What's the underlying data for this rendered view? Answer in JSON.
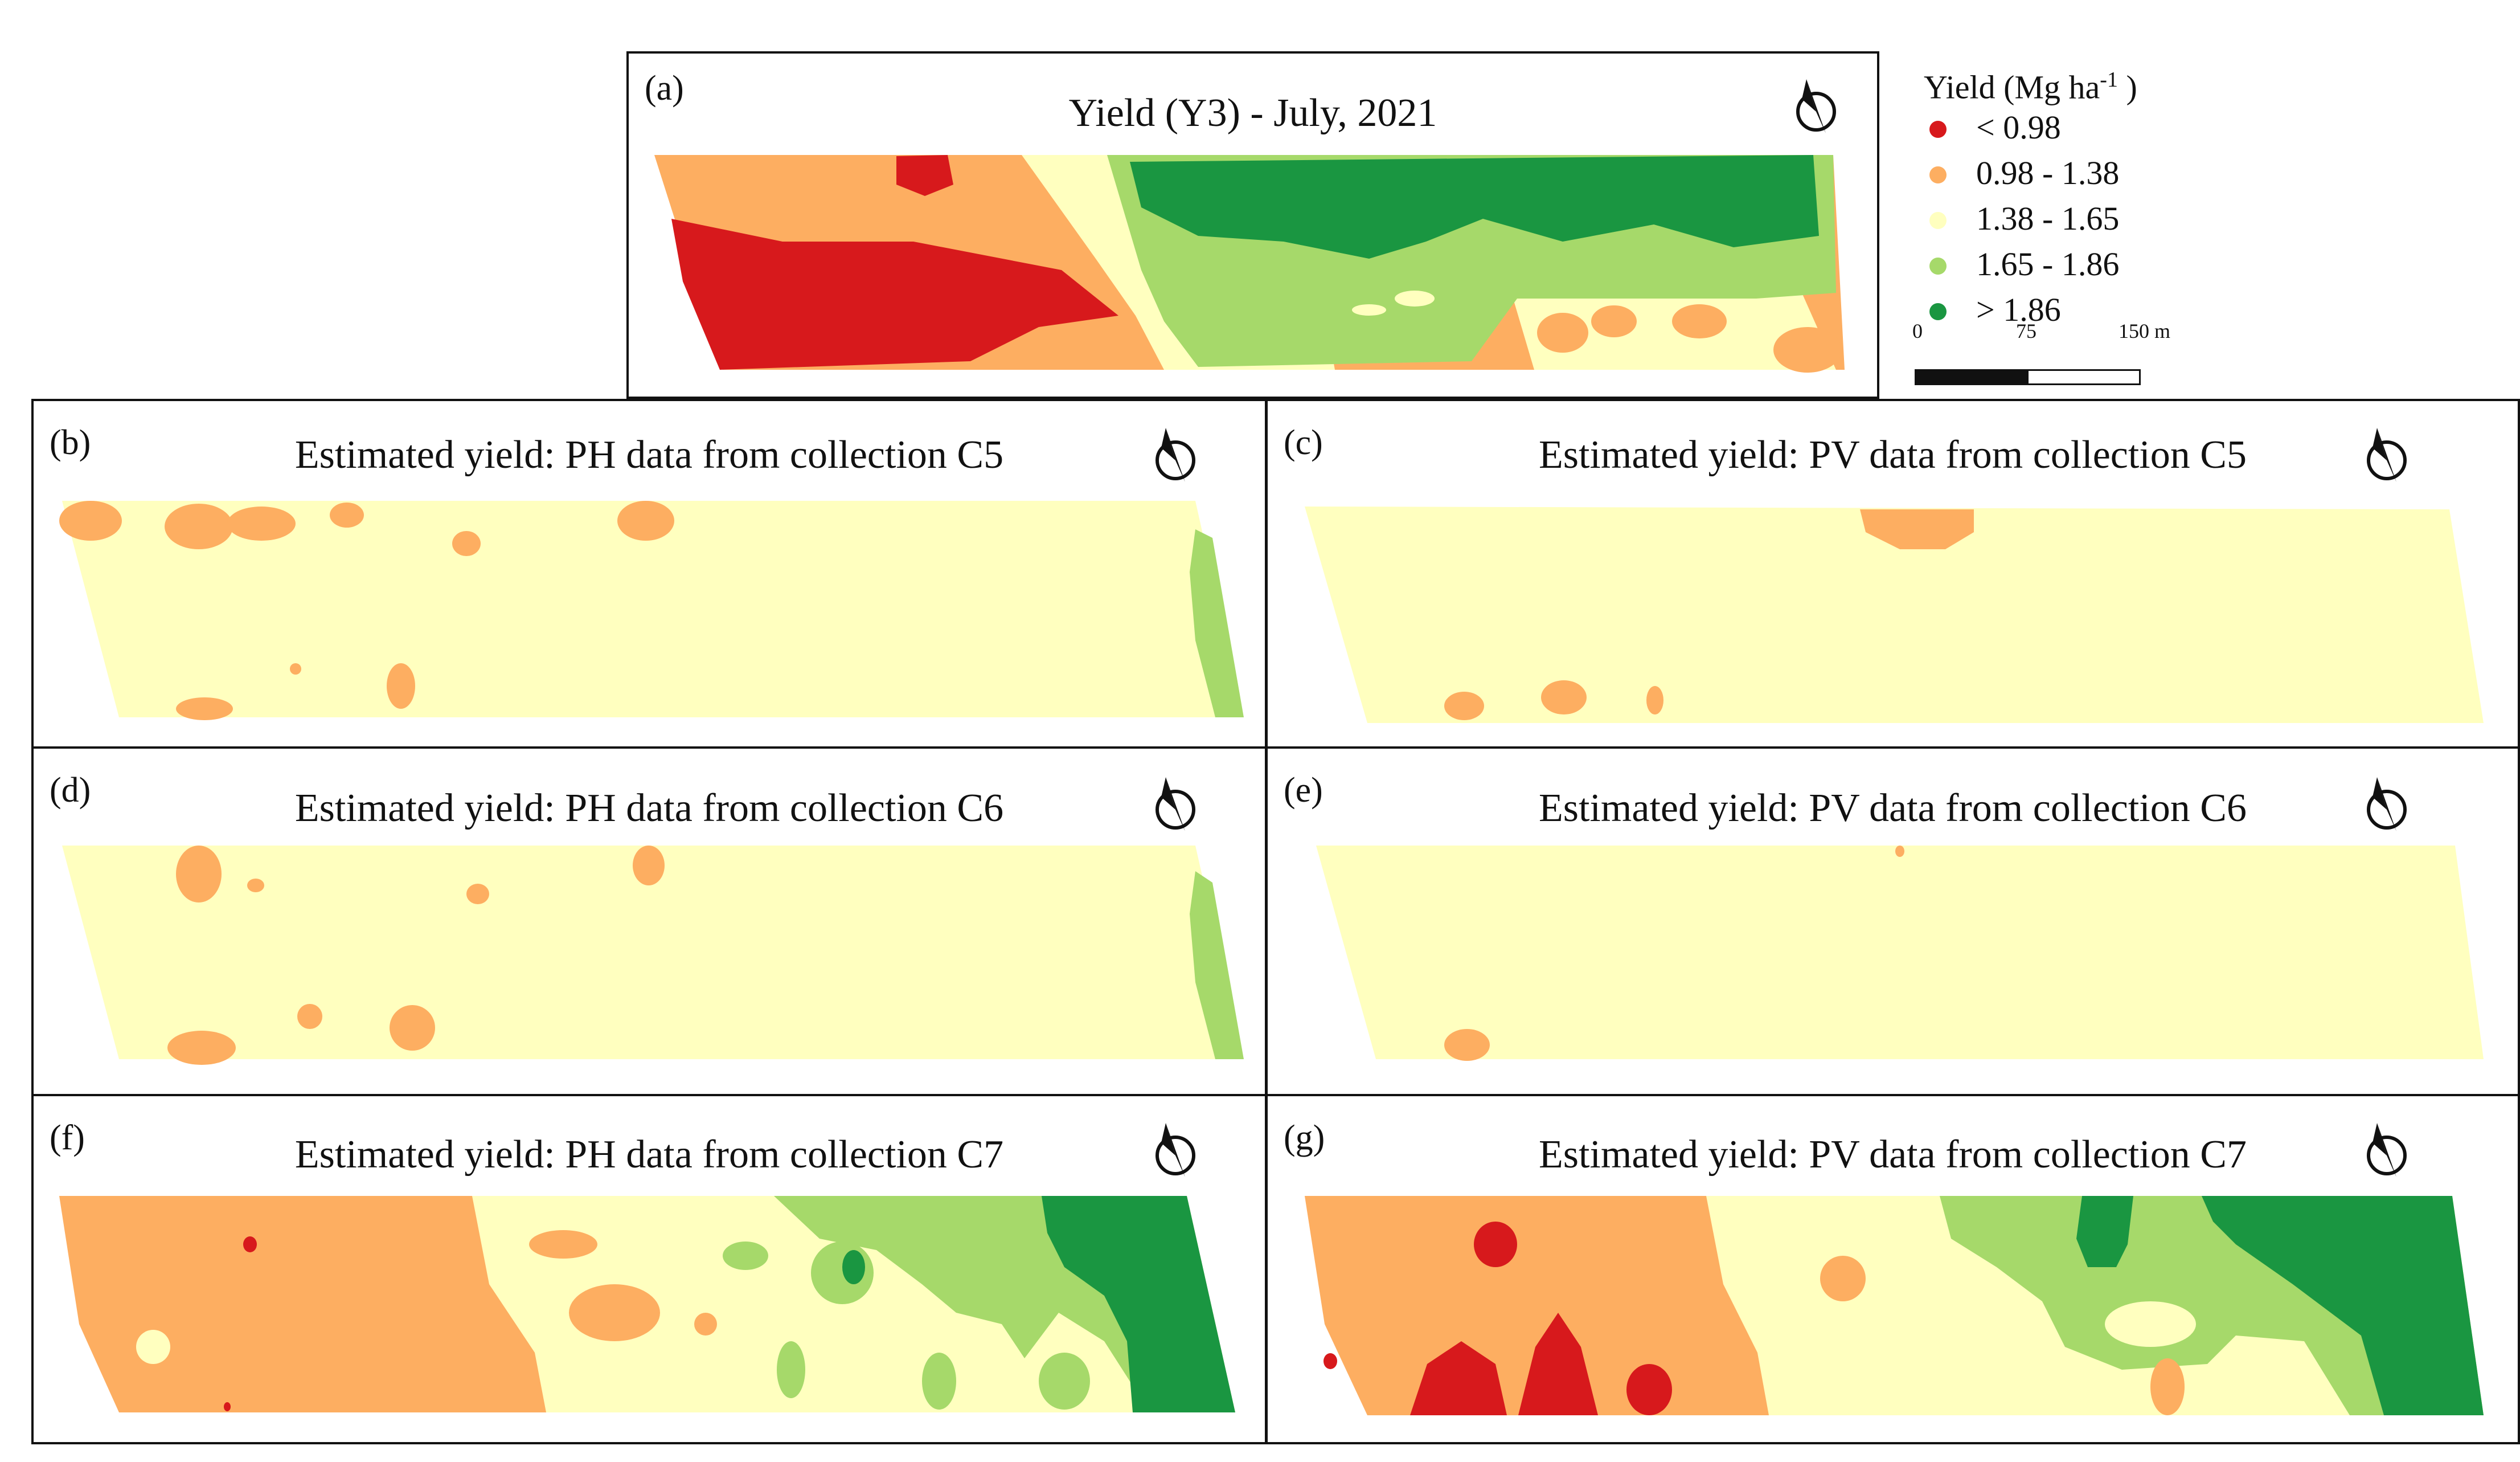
{
  "colors": {
    "class1": "#d7191c",
    "class2": "#fdae61",
    "class3": "#ffffbf",
    "class4": "#a6d96a",
    "class5": "#1a9641",
    "border": "#111111"
  },
  "legend": {
    "title": "Yield (Mg ha",
    "title_sup": "-1",
    "title_end": " )",
    "items": [
      {
        "label": "< 0.98",
        "color_key": "class1"
      },
      {
        "label": "0.98 - 1.38",
        "color_key": "class2"
      },
      {
        "label": "1.38 - 1.65",
        "color_key": "class3"
      },
      {
        "label": "1.65 - 1.86",
        "color_key": "class4"
      },
      {
        "label": "> 1.86",
        "color_key": "class5"
      }
    ]
  },
  "scale_bar": {
    "ticks": [
      "0",
      "75",
      "150 m"
    ]
  },
  "panels": [
    {
      "id": "a",
      "label": "(a)",
      "title": "Yield (Y3) - July, 2021"
    },
    {
      "id": "b",
      "label": "(b)",
      "title": "Estimated yield: PH data from collection C5"
    },
    {
      "id": "c",
      "label": "(c)",
      "title": "Estimated yield: PV data from collection C5"
    },
    {
      "id": "d",
      "label": "(d)",
      "title": "Estimated yield: PH data from collection C6"
    },
    {
      "id": "e",
      "label": "(e)",
      "title": "Estimated yield: PV data from collection C6"
    },
    {
      "id": "f",
      "label": "(f)",
      "title": "Estimated yield: PH data from collection C7"
    },
    {
      "id": "g",
      "label": "(g)",
      "title": "Estimated yield: PV data from collection C7"
    }
  ],
  "north_arrow": {
    "icon": "north-arrow-icon"
  }
}
